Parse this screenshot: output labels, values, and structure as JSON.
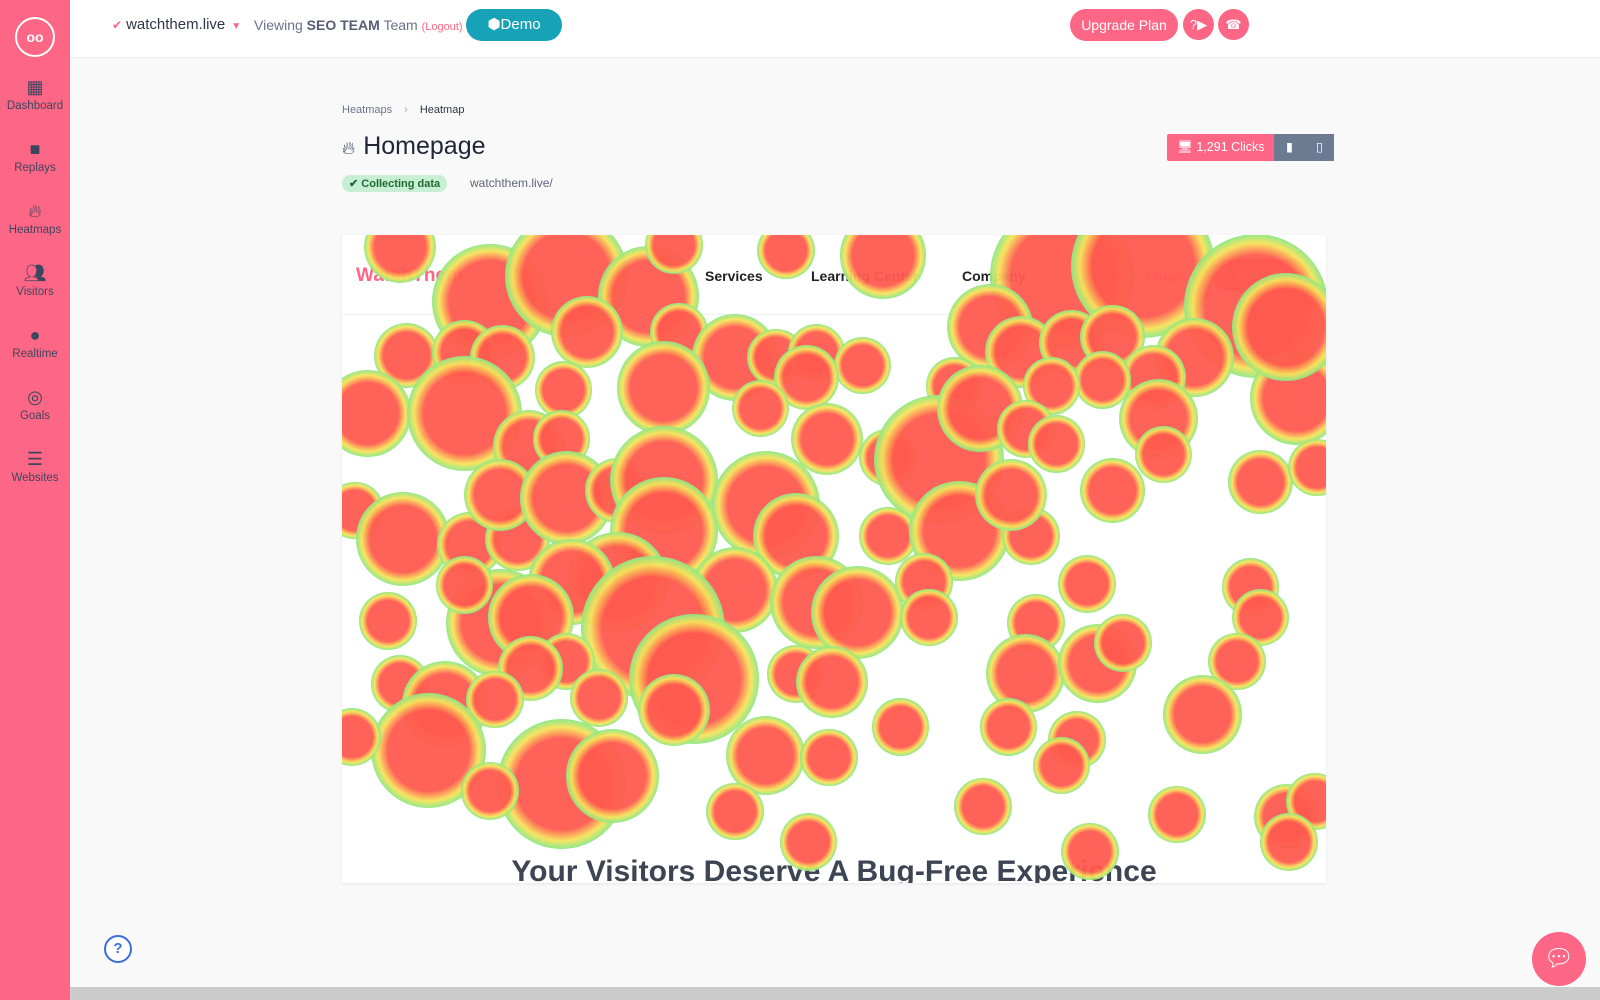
{
  "sidebar": {
    "logo": "oo",
    "items": [
      {
        "label": "Dashboard",
        "icon": "grid-icon"
      },
      {
        "label": "Replays",
        "icon": "video-icon"
      },
      {
        "label": "Heatmaps",
        "icon": "fire-icon"
      },
      {
        "label": "Visitors",
        "icon": "users-icon"
      },
      {
        "label": "Realtime",
        "icon": "clock-icon"
      },
      {
        "label": "Goals",
        "icon": "target-icon"
      },
      {
        "label": "Websites",
        "icon": "server-icon"
      }
    ]
  },
  "topbar": {
    "site": "watchthem.live",
    "viewing": "Viewing",
    "team_name": "SEO TEAM",
    "team_suffix": "Team",
    "logout": "(Logout)",
    "demo": "Demo",
    "upgrade": "Upgrade Plan"
  },
  "breadcrumb": {
    "parent": "Heatmaps",
    "current": "Heatmap"
  },
  "page": {
    "title": "Homepage",
    "status": "Collecting data",
    "url": "watchthem.live/",
    "clicks": "1,291 Clicks"
  },
  "preview": {
    "logo": "WatchThem",
    "nav": [
      "Services",
      "Learning Center",
      "Company",
      "Pricing",
      "Login"
    ],
    "signup": "SIGN UP",
    "headline": "Your Visitors Deserve A Bug-Free Experience"
  },
  "colors": {
    "brand": "#fe6685",
    "demo": "#17a2b8",
    "device_toggle": "#6c7a92"
  }
}
